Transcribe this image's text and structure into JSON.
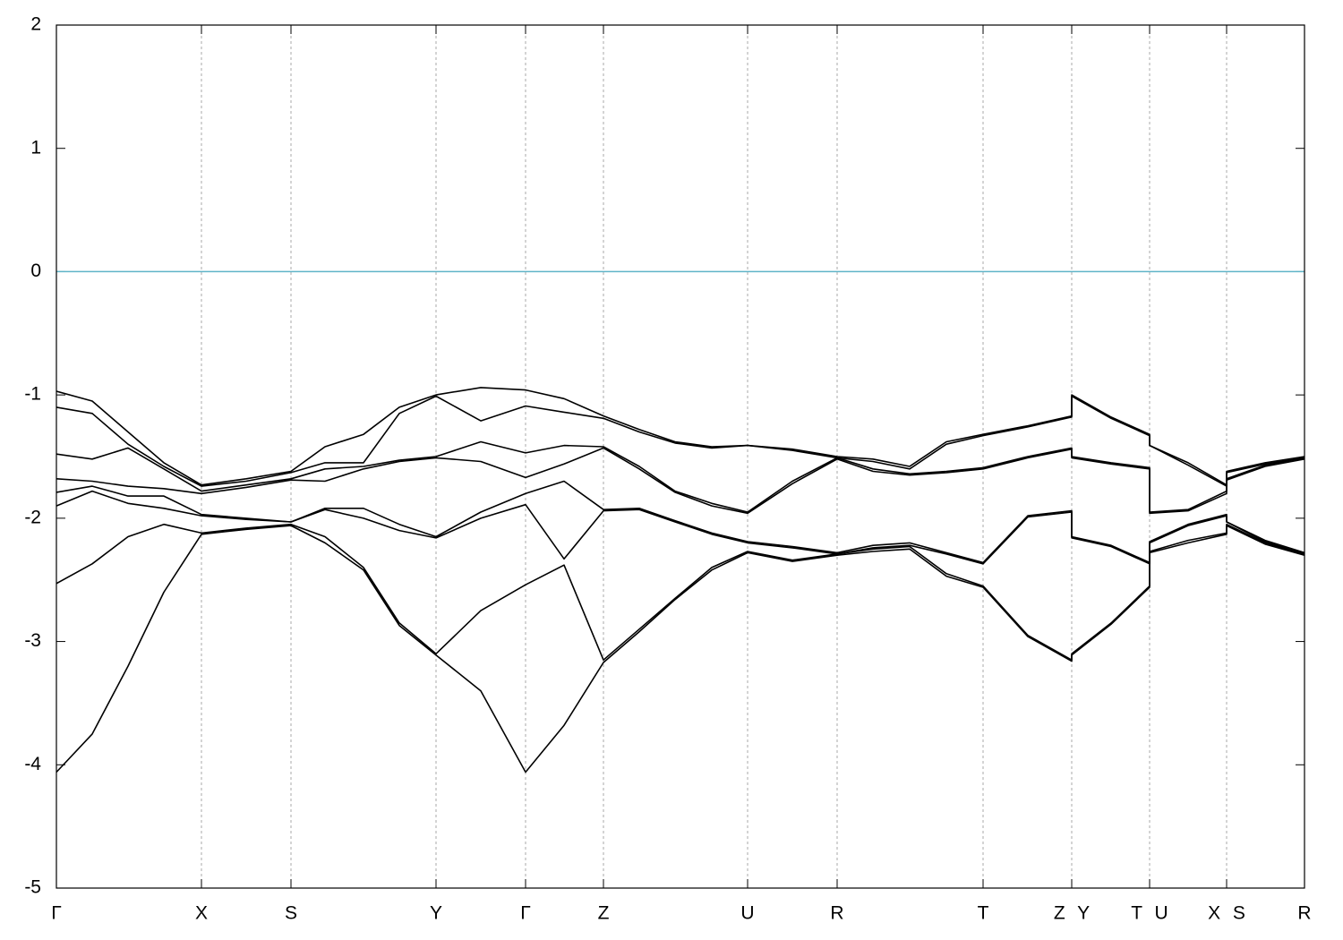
{
  "chart_data": {
    "type": "line",
    "x": [
      0,
      40,
      80,
      120,
      162,
      212,
      262,
      300,
      343,
      383,
      424,
      474,
      524,
      567,
      611,
      651,
      691,
      732,
      772,
      822,
      872,
      912,
      953,
      994,
      1035,
      1085,
      1134,
      1134,
      1178,
      1221,
      1221,
      1264,
      1307,
      1307,
      1350,
      1394
    ],
    "series": [
      {
        "color": "#000000",
        "values": [
          -0.97,
          -1.05,
          -1.3,
          -1.55,
          -1.73,
          -1.68,
          -1.62,
          -1.42,
          -1.32,
          -1.1,
          -1.0,
          -0.94,
          -0.96,
          -1.03,
          -1.17,
          -1.28,
          -1.38,
          -1.42,
          -1.41,
          -1.44,
          -1.5,
          -1.52,
          -1.58,
          -1.38,
          -1.32,
          -1.25,
          -1.17,
          -1.0,
          -1.18,
          -1.32,
          -1.41,
          -1.55,
          -1.73,
          -1.62,
          -1.55,
          -1.5
        ]
      },
      {
        "color": "#000000",
        "values": [
          -1.1,
          -1.15,
          -1.4,
          -1.58,
          -1.74,
          -1.7,
          -1.63,
          -1.55,
          -1.55,
          -1.15,
          -1.01,
          -1.21,
          -1.09,
          -1.14,
          -1.19,
          -1.3,
          -1.39,
          -1.43,
          -1.41,
          -1.45,
          -1.51,
          -1.54,
          -1.6,
          -1.4,
          -1.33,
          -1.26,
          -1.18,
          -1.01,
          -1.19,
          -1.33,
          -1.41,
          -1.57,
          -1.74,
          -1.63,
          -1.56,
          -1.51
        ]
      },
      {
        "color": "#000000",
        "values": [
          -1.48,
          -1.52,
          -1.43,
          -1.6,
          -1.78,
          -1.73,
          -1.68,
          -1.6,
          -1.58,
          -1.53,
          -1.5,
          -1.38,
          -1.47,
          -1.41,
          -1.42,
          -1.58,
          -1.78,
          -1.88,
          -1.95,
          -1.7,
          -1.51,
          -1.6,
          -1.64,
          -1.62,
          -1.59,
          -1.5,
          -1.43,
          -1.5,
          -1.55,
          -1.59,
          -1.95,
          -1.93,
          -1.78,
          -1.68,
          -1.57,
          -1.51
        ]
      },
      {
        "color": "#000000",
        "values": [
          -1.68,
          -1.7,
          -1.74,
          -1.76,
          -1.8,
          -1.75,
          -1.69,
          -1.7,
          -1.6,
          -1.54,
          -1.51,
          -1.54,
          -1.67,
          -1.56,
          -1.43,
          -1.6,
          -1.79,
          -1.9,
          -1.96,
          -1.72,
          -1.52,
          -1.62,
          -1.65,
          -1.63,
          -1.6,
          -1.51,
          -1.44,
          -1.51,
          -1.56,
          -1.6,
          -1.96,
          -1.94,
          -1.8,
          -1.69,
          -1.58,
          -1.52
        ]
      },
      {
        "color": "#000000",
        "values": [
          -1.79,
          -1.74,
          -1.82,
          -1.82,
          -1.97,
          -2.0,
          -2.03,
          -1.92,
          -1.92,
          -2.05,
          -2.15,
          -1.95,
          -1.8,
          -1.7,
          -1.93,
          -1.92,
          -2.02,
          -2.12,
          -2.19,
          -2.23,
          -2.28,
          -2.22,
          -2.2,
          -2.28,
          -2.36,
          -1.98,
          -1.94,
          -2.15,
          -2.22,
          -2.36,
          -2.19,
          -2.05,
          -1.97,
          -2.03,
          -2.18,
          -2.28
        ]
      },
      {
        "color": "#000000",
        "values": [
          -1.9,
          -1.78,
          -1.88,
          -1.92,
          -1.98,
          -2.01,
          -2.03,
          -1.93,
          -2.0,
          -2.1,
          -2.16,
          -2.0,
          -1.89,
          -2.33,
          -1.94,
          -1.93,
          -2.03,
          -2.13,
          -2.2,
          -2.24,
          -2.29,
          -2.24,
          -2.22,
          -2.29,
          -2.37,
          -1.99,
          -1.95,
          -2.16,
          -2.23,
          -2.37,
          -2.2,
          -2.06,
          -1.98,
          -2.03,
          -2.19,
          -2.29
        ]
      },
      {
        "color": "#000000",
        "values": [
          -2.53,
          -2.37,
          -2.15,
          -2.05,
          -2.12,
          -2.08,
          -2.05,
          -2.15,
          -2.4,
          -2.85,
          -3.1,
          -2.75,
          -2.54,
          -2.38,
          -3.15,
          -2.9,
          -2.65,
          -2.4,
          -2.27,
          -2.34,
          -2.29,
          -2.25,
          -2.23,
          -2.45,
          -2.55,
          -2.95,
          -3.15,
          -3.1,
          -2.85,
          -2.55,
          -2.27,
          -2.18,
          -2.12,
          -2.05,
          -2.2,
          -2.29
        ]
      },
      {
        "color": "#000000",
        "values": [
          -4.06,
          -3.75,
          -3.2,
          -2.6,
          -2.13,
          -2.09,
          -2.06,
          -2.2,
          -2.42,
          -2.87,
          -3.11,
          -3.4,
          -4.06,
          -3.68,
          -3.17,
          -2.92,
          -2.66,
          -2.42,
          -2.28,
          -2.35,
          -2.3,
          -2.27,
          -2.25,
          -2.47,
          -2.56,
          -2.96,
          -3.16,
          -3.11,
          -2.86,
          -2.56,
          -2.28,
          -2.2,
          -2.13,
          -2.06,
          -2.21,
          -2.3
        ]
      }
    ],
    "xlim": [
      0,
      1394
    ],
    "xticks": [
      {
        "value": 0,
        "label": "Γ"
      },
      {
        "value": 162,
        "label": "X"
      },
      {
        "value": 262,
        "label": "S"
      },
      {
        "value": 424,
        "label": "Y"
      },
      {
        "value": 524,
        "label": "Γ"
      },
      {
        "value": 611,
        "label": "Z"
      },
      {
        "value": 772,
        "label": "U"
      },
      {
        "value": 872,
        "label": "R"
      },
      {
        "value": 1035,
        "label": "T"
      },
      {
        "value": 1134,
        "label": "Z Y"
      },
      {
        "value": 1221,
        "label": "T U"
      },
      {
        "value": 1307,
        "label": "X S"
      },
      {
        "value": 1394,
        "label": "R"
      }
    ],
    "ylim": [
      -5,
      2
    ],
    "yticks": [
      -5,
      -4,
      -3,
      -2,
      -1,
      0,
      1,
      2
    ],
    "xgrid": true,
    "hlines": [
      {
        "value": 0,
        "color": "#5fb4c8"
      }
    ]
  }
}
